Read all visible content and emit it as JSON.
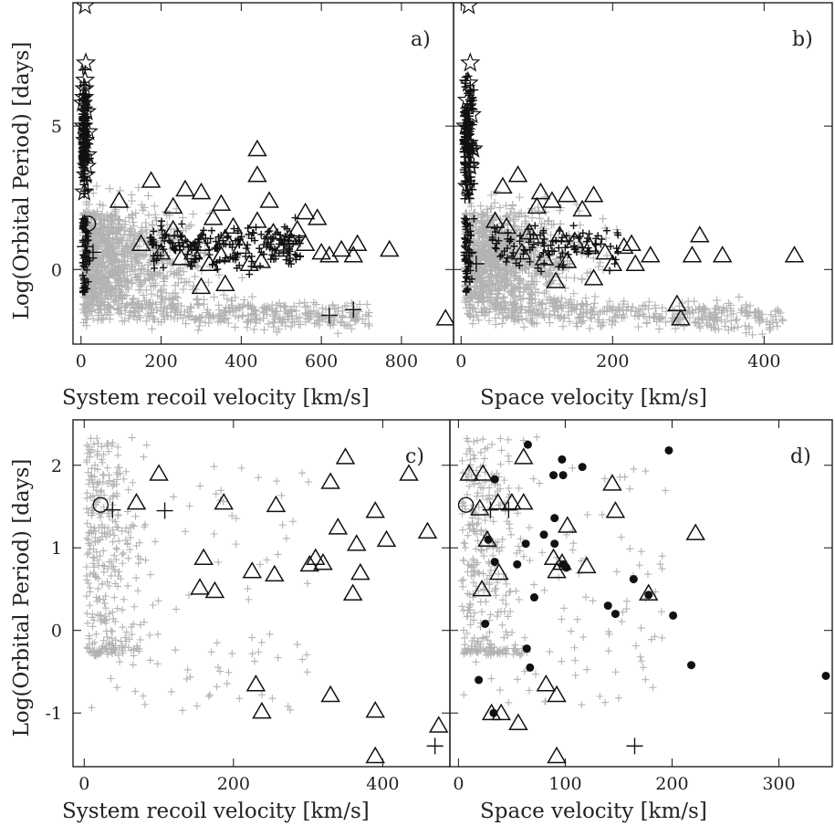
{
  "figure": {
    "ylabel": "Log(Orbital Period) [days]",
    "panels": [
      "a)",
      "b)",
      "c)",
      "d)"
    ],
    "xlabels": {
      "recoil": "System recoil velocity [km/s]",
      "space": "Space velocity [km/s]"
    }
  },
  "chart_data": [
    {
      "panel": "a)",
      "type": "scatter",
      "xlabel": "System recoil velocity [km/s]",
      "ylabel": "Log(Orbital Period) [days]",
      "xlim": [
        -20,
        930
      ],
      "ylim": [
        -2.6,
        9.3
      ],
      "xticks": [
        0,
        200,
        400,
        600,
        800
      ],
      "yticks": [
        0,
        5
      ],
      "series": [
        {
          "name": "stars",
          "marker": "star",
          "color": "#111111",
          "points": [
            [
              10,
              9.2
            ],
            [
              12,
              7.2
            ],
            [
              10,
              6.6
            ],
            [
              8,
              6.0
            ],
            [
              14,
              5.5
            ],
            [
              6,
              5.0
            ],
            [
              10,
              4.5
            ],
            [
              16,
              4.0
            ],
            [
              12,
              3.3
            ],
            [
              8,
              2.7
            ],
            [
              14,
              3.6
            ],
            [
              5,
              5.8
            ],
            [
              18,
              4.8
            ],
            [
              9,
              6.3
            ]
          ]
        },
        {
          "name": "triangles",
          "marker": "triangle",
          "color": "#111111",
          "points": [
            [
              440,
              4.2
            ],
            [
              440,
              3.3
            ],
            [
              175,
              3.1
            ],
            [
              300,
              2.7
            ],
            [
              260,
              2.8
            ],
            [
              95,
              2.4
            ],
            [
              350,
              2.3
            ],
            [
              470,
              2.4
            ],
            [
              560,
              2.0
            ],
            [
              590,
              1.8
            ],
            [
              230,
              2.2
            ],
            [
              380,
              1.5
            ],
            [
              480,
              1.3
            ],
            [
              520,
              1.1
            ],
            [
              560,
              0.9
            ],
            [
              600,
              0.6
            ],
            [
              650,
              0.7
            ],
            [
              690,
              0.9
            ],
            [
              770,
              0.7
            ],
            [
              300,
              0.9
            ],
            [
              400,
              0.8
            ],
            [
              350,
              0.5
            ],
            [
              250,
              0.4
            ],
            [
              450,
              0.3
            ],
            [
              280,
              0.6
            ],
            [
              320,
              0.2
            ],
            [
              200,
              0.6
            ],
            [
              420,
              0.2
            ],
            [
              360,
              1.1
            ],
            [
              500,
              0.7
            ],
            [
              540,
              1.4
            ],
            [
              620,
              0.5
            ],
            [
              680,
              0.5
            ],
            [
              150,
              0.9
            ],
            [
              230,
              1.4
            ],
            [
              330,
              1.8
            ],
            [
              440,
              1.7
            ],
            [
              300,
              -0.6
            ],
            [
              360,
              -0.5
            ],
            [
              910,
              -1.7
            ]
          ]
        },
        {
          "name": "black crosses",
          "marker": "cross",
          "color": "#111111",
          "points": [
            [
              680,
              -1.4
            ],
            [
              620,
              -1.6
            ],
            [
              10,
              0.8
            ],
            [
              20,
              0.4
            ],
            [
              30,
              0.6
            ]
          ]
        },
        {
          "name": "circles",
          "marker": "circle",
          "color": "#111111",
          "points": [
            [
              18,
              1.6
            ]
          ]
        }
      ]
    },
    {
      "panel": "b)",
      "type": "scatter",
      "xlabel": "Space velocity [km/s]",
      "ylabel": "Log(Orbital Period) [days]",
      "xlim": [
        -10,
        490
      ],
      "ylim": [
        -2.6,
        9.3
      ],
      "xticks": [
        0,
        200,
        400
      ],
      "yticks": [
        0,
        5
      ],
      "series": [
        {
          "name": "stars",
          "marker": "star",
          "color": "#111111",
          "points": [
            [
              10,
              9.2
            ],
            [
              12,
              7.2
            ],
            [
              10,
              6.5
            ],
            [
              8,
              5.9
            ],
            [
              14,
              5.4
            ],
            [
              6,
              5.0
            ],
            [
              10,
              4.4
            ],
            [
              12,
              3.6
            ],
            [
              8,
              2.9
            ],
            [
              16,
              4.2
            ]
          ]
        },
        {
          "name": "triangles",
          "marker": "triangle",
          "color": "#111111",
          "points": [
            [
              75,
              3.3
            ],
            [
              55,
              2.9
            ],
            [
              105,
              2.7
            ],
            [
              140,
              2.6
            ],
            [
              175,
              2.6
            ],
            [
              100,
              2.2
            ],
            [
              120,
              2.4
            ],
            [
              160,
              2.1
            ],
            [
              45,
              1.7
            ],
            [
              60,
              1.5
            ],
            [
              90,
              1.3
            ],
            [
              130,
              1.2
            ],
            [
              150,
              1.0
            ],
            [
              170,
              0.8
            ],
            [
              190,
              0.6
            ],
            [
              215,
              0.8
            ],
            [
              225,
              0.9
            ],
            [
              250,
              0.5
            ],
            [
              80,
              0.6
            ],
            [
              110,
              0.4
            ],
            [
              140,
              0.3
            ],
            [
              200,
              0.2
            ],
            [
              230,
              0.2
            ],
            [
              315,
              1.2
            ],
            [
              305,
              0.5
            ],
            [
              345,
              0.5
            ],
            [
              440,
              0.5
            ],
            [
              125,
              -0.4
            ],
            [
              175,
              -0.3
            ],
            [
              285,
              -1.2
            ],
            [
              290,
              -1.7
            ]
          ]
        },
        {
          "name": "black crosses",
          "marker": "cross",
          "color": "#111111",
          "points": [
            [
              10,
              0.6
            ],
            [
              20,
              0.2
            ]
          ]
        }
      ]
    },
    {
      "panel": "c)",
      "type": "scatter",
      "xlabel": "System recoil velocity [km/s]",
      "ylabel": "Log(Orbital Period) [days]",
      "xlim": [
        -15,
        490
      ],
      "ylim": [
        -1.65,
        2.55
      ],
      "xticks": [
        0,
        200,
        400
      ],
      "yticks": [
        -1,
        0,
        1,
        2
      ],
      "series": [
        {
          "name": "triangles",
          "marker": "triangle",
          "color": "#111111",
          "points": [
            [
              100,
              1.9
            ],
            [
              70,
              1.55
            ],
            [
              187,
              1.55
            ],
            [
              257,
              1.52
            ],
            [
              350,
              2.1
            ],
            [
              435,
              1.9
            ],
            [
              330,
              1.8
            ],
            [
              390,
              1.45
            ],
            [
              460,
              1.2
            ],
            [
              340,
              1.25
            ],
            [
              365,
              1.05
            ],
            [
              405,
              1.1
            ],
            [
              160,
              0.88
            ],
            [
              155,
              0.52
            ],
            [
              175,
              0.48
            ],
            [
              225,
              0.72
            ],
            [
              255,
              0.68
            ],
            [
              302,
              0.8
            ],
            [
              310,
              0.88
            ],
            [
              320,
              0.82
            ],
            [
              370,
              0.7
            ],
            [
              360,
              0.45
            ],
            [
              230,
              -0.65
            ],
            [
              238,
              -0.98
            ],
            [
              330,
              -0.78
            ],
            [
              390,
              -0.97
            ],
            [
              475,
              -1.15
            ],
            [
              390,
              -1.52
            ]
          ]
        },
        {
          "name": "black crosses",
          "marker": "cross",
          "color": "#111111",
          "points": [
            [
              108,
              1.45
            ],
            [
              38,
              1.46
            ],
            [
              470,
              -1.4
            ]
          ]
        },
        {
          "name": "black circles",
          "marker": "circle",
          "color": "#111111",
          "points": [
            [
              22,
              1.52
            ]
          ]
        }
      ]
    },
    {
      "panel": "d)",
      "type": "scatter",
      "xlabel": "Space velocity [km/s]",
      "ylabel": "Log(Orbital Period) [days]",
      "xlim": [
        -8,
        350
      ],
      "ylim": [
        -1.65,
        2.55
      ],
      "xticks": [
        0,
        100,
        200,
        300
      ],
      "yticks": [
        -1,
        0,
        1,
        2
      ],
      "series": [
        {
          "name": "filled circles",
          "marker": "dot",
          "color": "#111111",
          "points": [
            [
              65,
              2.25
            ],
            [
              97,
              2.07
            ],
            [
              116,
              1.98
            ],
            [
              197,
              2.18
            ],
            [
              34,
              1.83
            ],
            [
              89,
              1.88
            ],
            [
              98,
              1.88
            ],
            [
              90,
              1.36
            ],
            [
              80,
              1.16
            ],
            [
              63,
              1.05
            ],
            [
              90,
              1.05
            ],
            [
              28,
              1.1
            ],
            [
              34,
              0.83
            ],
            [
              55,
              0.8
            ],
            [
              98,
              0.8
            ],
            [
              101,
              0.76
            ],
            [
              164,
              0.62
            ],
            [
              178,
              0.43
            ],
            [
              71,
              0.4
            ],
            [
              140,
              0.3
            ],
            [
              147,
              0.2
            ],
            [
              201,
              0.18
            ],
            [
              218,
              -0.42
            ],
            [
              64,
              -0.22
            ],
            [
              67,
              -0.45
            ],
            [
              25,
              0.08
            ],
            [
              19,
              -0.6
            ],
            [
              33,
              -1.0
            ],
            [
              344,
              -0.55
            ]
          ]
        },
        {
          "name": "triangles",
          "marker": "triangle",
          "color": "#111111",
          "points": [
            [
              61,
              2.1
            ],
            [
              10,
              1.9
            ],
            [
              23,
              1.9
            ],
            [
              37,
              1.55
            ],
            [
              50,
              1.55
            ],
            [
              61,
              1.55
            ],
            [
              20,
              1.48
            ],
            [
              144,
              1.78
            ],
            [
              147,
              1.45
            ],
            [
              102,
              1.27
            ],
            [
              222,
              1.18
            ],
            [
              27,
              1.1
            ],
            [
              89,
              0.88
            ],
            [
              92,
              0.72
            ],
            [
              97,
              0.82
            ],
            [
              120,
              0.78
            ],
            [
              38,
              0.7
            ],
            [
              22,
              0.5
            ],
            [
              178,
              0.45
            ],
            [
              82,
              -0.65
            ],
            [
              92,
              -0.78
            ],
            [
              31,
              -1.0
            ],
            [
              40,
              -1.0
            ],
            [
              56,
              -1.12
            ],
            [
              92,
              -1.52
            ]
          ]
        },
        {
          "name": "black crosses",
          "marker": "cross",
          "color": "#111111",
          "points": [
            [
              30,
              1.46
            ],
            [
              47,
              1.46
            ],
            [
              165,
              -1.4
            ]
          ]
        },
        {
          "name": "black circles",
          "marker": "circle",
          "color": "#111111",
          "points": [
            [
              7,
              1.52
            ]
          ]
        }
      ]
    }
  ]
}
